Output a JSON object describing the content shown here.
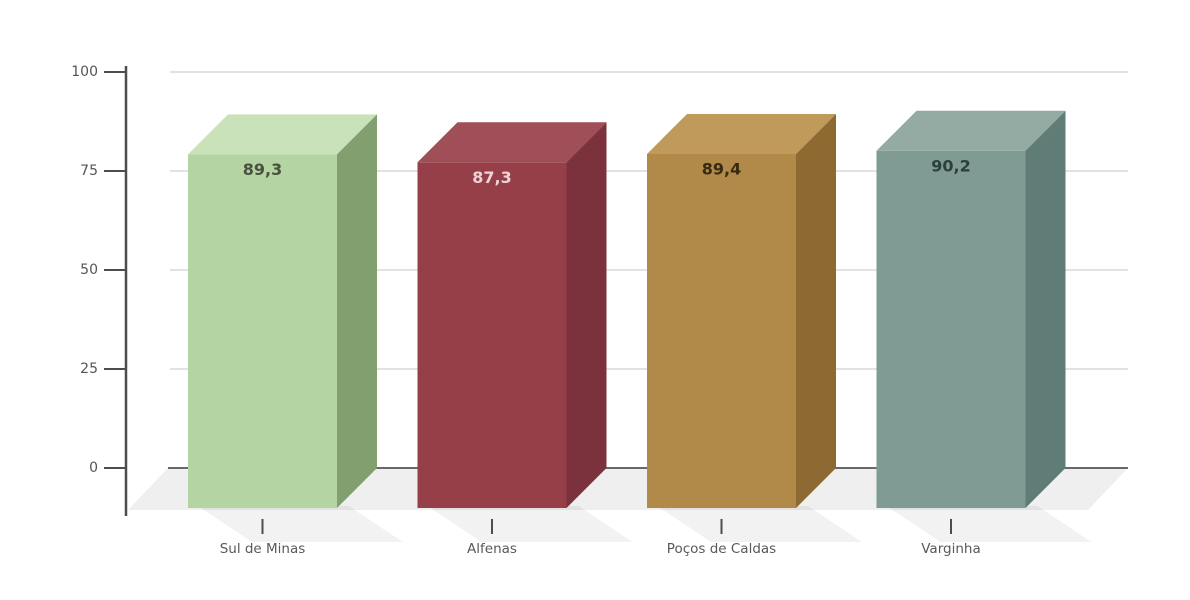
{
  "chart_data": {
    "type": "bar",
    "projection": "3d-column",
    "title": "",
    "xlabel": "",
    "ylabel": "",
    "categories": [
      "Sul de Minas",
      "Alfenas",
      "Poços de Caldas",
      "Varginha"
    ],
    "values": [
      89.3,
      87.3,
      89.4,
      90.2
    ],
    "value_labels": [
      "89,3",
      "87,3",
      "89,4",
      "90,2"
    ],
    "ylim": [
      0,
      100
    ],
    "yticks": [
      0,
      25,
      50,
      75,
      100
    ],
    "ytick_labels": [
      "0",
      "25",
      "50",
      "75",
      "100"
    ],
    "grid": true,
    "legend": false,
    "background": "#ffffff",
    "bar_colors": [
      {
        "front": "#b4d4a4",
        "top": "#c9e2ba",
        "side": "#82a06f",
        "label": "#49513f"
      },
      {
        "front": "#963f49",
        "top": "#a04e57",
        "side": "#7c323c",
        "label": "#eed4d7"
      },
      {
        "front": "#b18a49",
        "top": "#bf9a5b",
        "side": "#8c6a31",
        "label": "#362a11"
      },
      {
        "front": "#7f9b93",
        "top": "#94aba4",
        "side": "#5f7d76",
        "label": "#2d3f3a"
      }
    ],
    "axis_color": "#4d4d4d",
    "gridline_color": "#d8d8d8",
    "zero_line_color": "#686868",
    "floor_color": "#efefef",
    "shadow_color": "rgba(0,0,0,0.05)",
    "tick_label_color": "#555555",
    "category_label_color": "#595959"
  }
}
